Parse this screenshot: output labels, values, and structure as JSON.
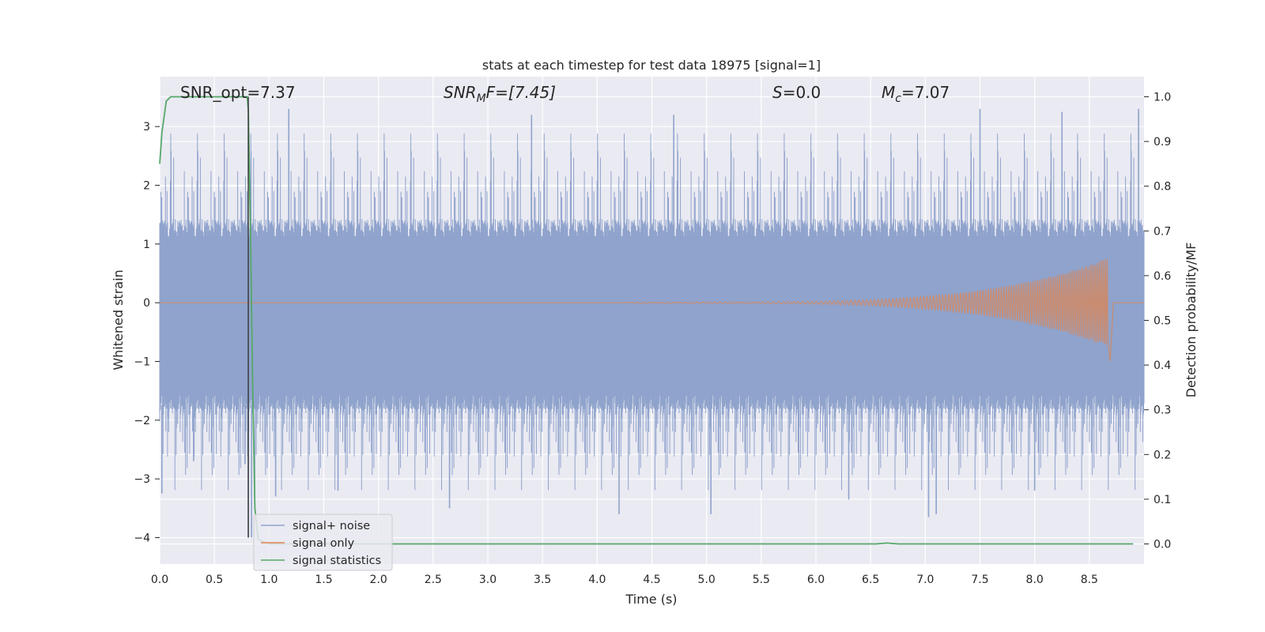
{
  "chart_data": {
    "type": "line",
    "title": "stats at each timestep for test data 18975 [signal=1]",
    "xlabel": "Time (s)",
    "ylabel": "Whitened strain",
    "y2label": "Detection probability/MF",
    "xlim": [
      0.0,
      9.0
    ],
    "ylim": [
      -4.45,
      3.85
    ],
    "y2lim": [
      -0.045,
      1.045
    ],
    "x_ticks": [
      "0.0",
      "0.5",
      "1.0",
      "1.5",
      "2.0",
      "2.5",
      "3.0",
      "3.5",
      "4.0",
      "4.5",
      "5.0",
      "5.5",
      "6.0",
      "6.5",
      "7.0",
      "7.5",
      "8.0",
      "8.5"
    ],
    "y_ticks": [
      "3",
      "2",
      "1",
      "0",
      "−1",
      "−2",
      "−3",
      "−4"
    ],
    "y2_ticks": [
      "1.0",
      "0.9",
      "0.8",
      "0.7",
      "0.6",
      "0.5",
      "0.4",
      "0.3",
      "0.2",
      "0.1",
      "0.0"
    ],
    "grid": true,
    "legend_placement": "lower-left",
    "series": [
      {
        "name": "signal+ noise",
        "color": "#8fa3cc",
        "approx_band": {
          "core_min": -1.75,
          "core_max": 1.25,
          "spike_min": -4.0,
          "spike_max": 3.3
        },
        "notable_spikes": [
          {
            "x": 0.02,
            "y": -3.25
          },
          {
            "x": 0.31,
            "y": -2.7
          },
          {
            "x": 0.78,
            "y": -2.75
          },
          {
            "x": 0.81,
            "y": -4.0
          },
          {
            "x": 0.84,
            "y": -4.0
          },
          {
            "x": 1.06,
            "y": -3.3
          },
          {
            "x": 1.63,
            "y": -3.2
          },
          {
            "x": 1.18,
            "y": 3.3
          },
          {
            "x": 2.65,
            "y": -3.5
          },
          {
            "x": 3.4,
            "y": 3.2
          },
          {
            "x": 4.2,
            "y": -3.6
          },
          {
            "x": 4.7,
            "y": 3.2
          },
          {
            "x": 5.04,
            "y": -3.6
          },
          {
            "x": 6.3,
            "y": -3.35
          },
          {
            "x": 7.03,
            "y": -3.65
          },
          {
            "x": 7.1,
            "y": -3.6
          },
          {
            "x": 7.5,
            "y": 3.3
          },
          {
            "x": 8.0,
            "y": -3.2
          },
          {
            "x": 8.25,
            "y": 3.25
          },
          {
            "x": 8.95,
            "y": 3.3
          }
        ]
      },
      {
        "name": "signal only",
        "color": "#dd8452",
        "chirp": {
          "start": 4.3,
          "peak": 8.67,
          "peak_amplitude": 0.75,
          "amplitude_at_8": 0.25
        }
      },
      {
        "name": "signal statistics",
        "color": "#55a868",
        "axis": "right",
        "x": [
          0.0,
          0.02,
          0.06,
          0.1,
          0.2,
          0.4,
          0.6,
          0.8,
          0.81,
          0.83,
          0.85,
          0.87,
          0.9,
          1.0,
          2.0,
          4.0,
          6.0,
          6.55,
          6.65,
          6.75,
          7.0,
          8.0,
          8.9
        ],
        "values": [
          0.85,
          0.92,
          0.99,
          1.0,
          1.0,
          1.0,
          1.0,
          1.0,
          0.97,
          0.7,
          0.35,
          0.08,
          0.01,
          0.0,
          0.0,
          0.0,
          0.0,
          0.0,
          0.002,
          0.0,
          0.0,
          0.0,
          0.0
        ]
      }
    ],
    "vertical_line": {
      "x": 0.81,
      "color": "#333333"
    },
    "annotations": {
      "snr_opt": "SNR_opt=7.37",
      "snr_mf_main": "SNR",
      "snr_mf_sub": "M",
      "snr_mf_rest": "F=[7.45]",
      "s_main": "S",
      "s_rest": "=0.0",
      "mc_main": "M",
      "mc_sub": "c",
      "mc_rest": "=7.07"
    }
  }
}
